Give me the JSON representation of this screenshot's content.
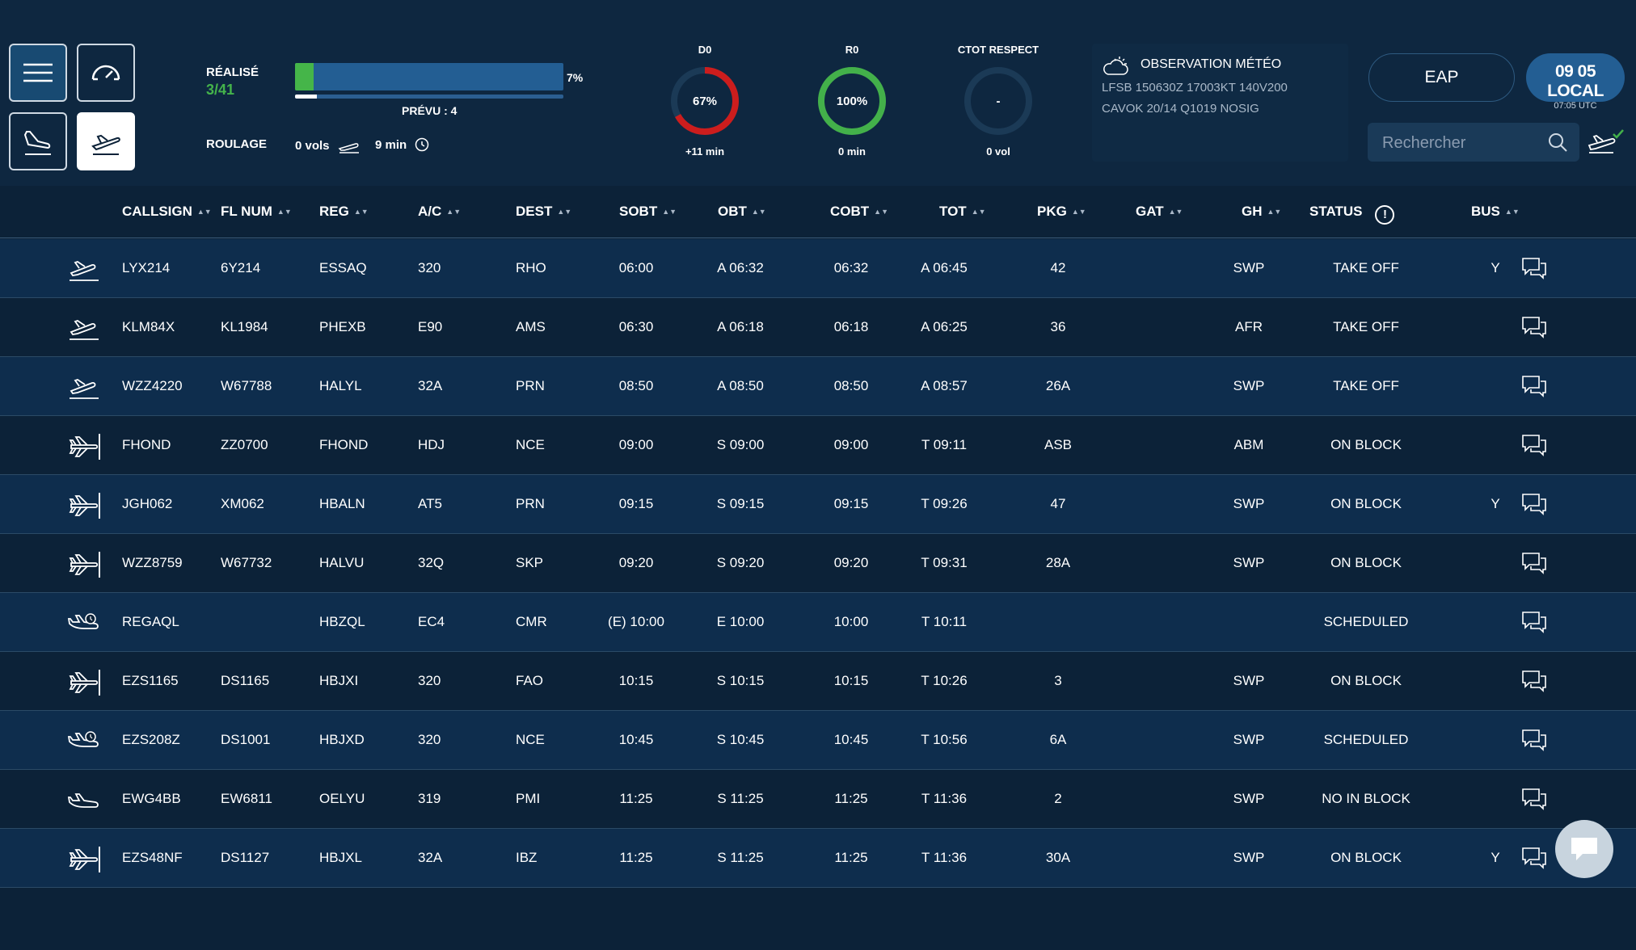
{
  "summary": {
    "realise_label": "RÉALISÉ",
    "realise_value": "3/41",
    "progress_pct_label": "7%",
    "progress_fraction": 0.07,
    "prevu_fraction": 0.08,
    "prevu_label": "PRÉVU : 4",
    "roulage_label": "ROULAGE",
    "roulage_vols": "0 vols",
    "roulage_min": "9 min"
  },
  "gauges": {
    "d0": {
      "title": "D0",
      "value": "67%",
      "fraction": 0.67,
      "sub": "+11 min",
      "color": "#cc1d1d"
    },
    "r0": {
      "title": "R0",
      "value": "100%",
      "fraction": 1.0,
      "sub": "0 min",
      "color": "#43b04a"
    },
    "ctot": {
      "title": "CTOT RESPECT",
      "value": "-",
      "fraction": 0,
      "sub": "0 vol",
      "color": "#1a3a58"
    }
  },
  "meteo": {
    "title": "OBSERVATION MÉTÉO",
    "line1": "LFSB 150630Z 17003KT 140V200",
    "line2": "CAVOK 20/14 Q1019 NOSIG"
  },
  "eap_label": "EAP",
  "clock": {
    "local": "09 05 LOCAL",
    "utc": "07:05 UTC"
  },
  "search": {
    "placeholder": "Rechercher"
  },
  "columns": [
    "CALLSIGN",
    "FL NUM",
    "REG",
    "A/C",
    "DEST",
    "SOBT",
    "OBT",
    "COBT",
    "TOT",
    "PKG",
    "GAT",
    "GH",
    "STATUS",
    "BUS"
  ],
  "rows": [
    {
      "type": "takeoff",
      "callsign": "LYX214",
      "flnum": "6Y214",
      "reg": "ESSAQ",
      "ac": "320",
      "dest": "RHO",
      "sobt": "06:00",
      "obt": "A 06:32",
      "cobt": "06:32",
      "tot": "A 06:45",
      "pkg": "42",
      "gat": "",
      "gh": "SWP",
      "status": "TAKE OFF",
      "bus": "Y"
    },
    {
      "type": "takeoff",
      "callsign": "KLM84X",
      "flnum": "KL1984",
      "reg": "PHEXB",
      "ac": "E90",
      "dest": "AMS",
      "sobt": "06:30",
      "obt": "A 06:18",
      "cobt": "06:18",
      "tot": "A 06:25",
      "pkg": "36",
      "gat": "",
      "gh": "AFR",
      "status": "TAKE OFF",
      "bus": ""
    },
    {
      "type": "takeoff",
      "callsign": "WZZ4220",
      "flnum": "W67788",
      "reg": "HALYL",
      "ac": "32A",
      "dest": "PRN",
      "sobt": "08:50",
      "obt": "A 08:50",
      "cobt": "08:50",
      "tot": "A 08:57",
      "pkg": "26A",
      "gat": "",
      "gh": "SWP",
      "status": "TAKE OFF",
      "bus": ""
    },
    {
      "type": "onblock",
      "callsign": "FHOND",
      "flnum": "ZZ0700",
      "reg": "FHOND",
      "ac": "HDJ",
      "dest": "NCE",
      "sobt": "09:00",
      "obt": "S 09:00",
      "cobt": "09:00",
      "tot": "T 09:11",
      "pkg": "ASB",
      "gat": "",
      "gh": "ABM",
      "status": "ON BLOCK",
      "bus": ""
    },
    {
      "type": "onblock",
      "callsign": "JGH062",
      "flnum": "XM062",
      "reg": "HBALN",
      "ac": "AT5",
      "dest": "PRN",
      "sobt": "09:15",
      "obt": "S 09:15",
      "cobt": "09:15",
      "tot": "T 09:26",
      "pkg": "47",
      "gat": "",
      "gh": "SWP",
      "status": "ON BLOCK",
      "bus": "Y"
    },
    {
      "type": "onblock",
      "callsign": "WZZ8759",
      "flnum": "W67732",
      "reg": "HALVU",
      "ac": "32Q",
      "dest": "SKP",
      "sobt": "09:20",
      "obt": "S 09:20",
      "cobt": "09:20",
      "tot": "T 09:31",
      "pkg": "28A",
      "gat": "",
      "gh": "SWP",
      "status": "ON BLOCK",
      "bus": ""
    },
    {
      "type": "scheduled",
      "callsign": "REGAQL",
      "flnum": "",
      "reg": "HBZQL",
      "ac": "EC4",
      "dest": "CMR",
      "sobt": "(E) 10:00",
      "obt": "E 10:00",
      "cobt": "10:00",
      "tot": "T 10:11",
      "pkg": "",
      "gat": "",
      "gh": "",
      "status": "SCHEDULED",
      "bus": ""
    },
    {
      "type": "onblock",
      "callsign": "EZS1165",
      "flnum": "DS1165",
      "reg": "HBJXI",
      "ac": "320",
      "dest": "FAO",
      "sobt": "10:15",
      "obt": "S 10:15",
      "cobt": "10:15",
      "tot": "T 10:26",
      "pkg": "3",
      "gat": "",
      "gh": "SWP",
      "status": "ON BLOCK",
      "bus": ""
    },
    {
      "type": "scheduled",
      "callsign": "EZS208Z",
      "flnum": "DS1001",
      "reg": "HBJXD",
      "ac": "320",
      "dest": "NCE",
      "sobt": "10:45",
      "obt": "S 10:45",
      "cobt": "10:45",
      "tot": "T 10:56",
      "pkg": "6A",
      "gat": "",
      "gh": "SWP",
      "status": "SCHEDULED",
      "bus": ""
    },
    {
      "type": "noinblock",
      "callsign": "EWG4BB",
      "flnum": "EW6811",
      "reg": "OELYU",
      "ac": "319",
      "dest": "PMI",
      "sobt": "11:25",
      "obt": "S 11:25",
      "cobt": "11:25",
      "tot": "T 11:36",
      "pkg": "2",
      "gat": "",
      "gh": "SWP",
      "status": "NO IN BLOCK",
      "bus": ""
    },
    {
      "type": "onblock",
      "callsign": "EZS48NF",
      "flnum": "DS1127",
      "reg": "HBJXL",
      "ac": "32A",
      "dest": "IBZ",
      "sobt": "11:25",
      "obt": "S 11:25",
      "cobt": "11:25",
      "tot": "T 11:36",
      "pkg": "30A",
      "gat": "",
      "gh": "SWP",
      "status": "ON BLOCK",
      "bus": "Y"
    }
  ]
}
